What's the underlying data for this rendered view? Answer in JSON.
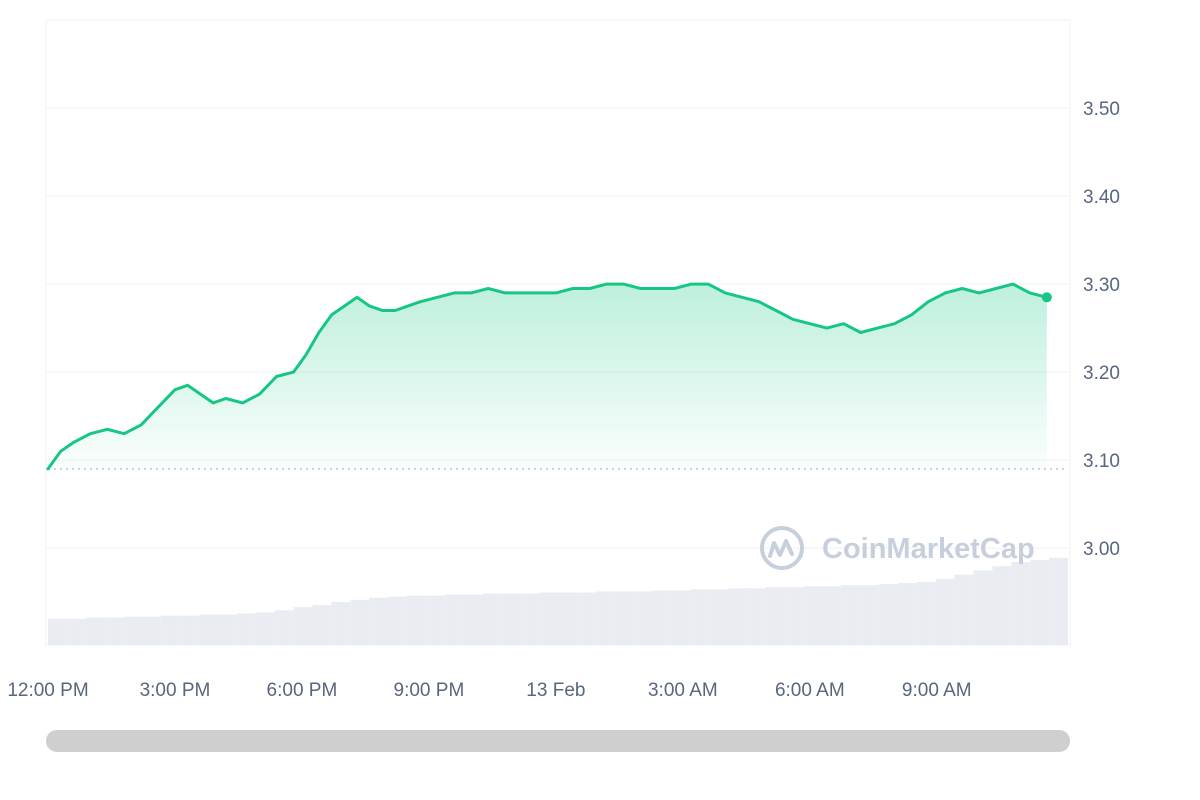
{
  "chart_data": {
    "type": "line",
    "title": "",
    "xlabel": "",
    "ylabel": "",
    "x_ticks": [
      "12:00 PM",
      "3:00 PM",
      "6:00 PM",
      "9:00 PM",
      "13 Feb",
      "3:00 AM",
      "6:00 AM",
      "9:00 AM"
    ],
    "y_ticks": [
      "3.00",
      "3.10",
      "3.20",
      "3.30",
      "3.40",
      "3.50"
    ],
    "ylim": [
      2.89,
      3.6
    ],
    "x_unit": "hours since 12:00 PM (12 Feb)",
    "xlim": [
      0,
      24.1
    ],
    "baseline": 3.09,
    "grid": true,
    "series": [
      {
        "values": [
          [
            0.0,
            3.09
          ],
          [
            0.3,
            3.11
          ],
          [
            0.6,
            3.12
          ],
          [
            1.0,
            3.13
          ],
          [
            1.4,
            3.135
          ],
          [
            1.8,
            3.13
          ],
          [
            2.2,
            3.14
          ],
          [
            2.6,
            3.16
          ],
          [
            3.0,
            3.18
          ],
          [
            3.3,
            3.185
          ],
          [
            3.6,
            3.175
          ],
          [
            3.9,
            3.165
          ],
          [
            4.2,
            3.17
          ],
          [
            4.6,
            3.165
          ],
          [
            5.0,
            3.175
          ],
          [
            5.4,
            3.195
          ],
          [
            5.8,
            3.2
          ],
          [
            6.1,
            3.22
          ],
          [
            6.4,
            3.245
          ],
          [
            6.7,
            3.265
          ],
          [
            7.0,
            3.275
          ],
          [
            7.3,
            3.285
          ],
          [
            7.6,
            3.275
          ],
          [
            7.9,
            3.27
          ],
          [
            8.2,
            3.27
          ],
          [
            8.5,
            3.275
          ],
          [
            8.8,
            3.28
          ],
          [
            9.2,
            3.285
          ],
          [
            9.6,
            3.29
          ],
          [
            10.0,
            3.29
          ],
          [
            10.4,
            3.295
          ],
          [
            10.8,
            3.29
          ],
          [
            11.2,
            3.29
          ],
          [
            11.6,
            3.29
          ],
          [
            12.0,
            3.29
          ],
          [
            12.4,
            3.295
          ],
          [
            12.8,
            3.295
          ],
          [
            13.2,
            3.3
          ],
          [
            13.6,
            3.3
          ],
          [
            14.0,
            3.295
          ],
          [
            14.4,
            3.295
          ],
          [
            14.8,
            3.295
          ],
          [
            15.2,
            3.3
          ],
          [
            15.6,
            3.3
          ],
          [
            16.0,
            3.29
          ],
          [
            16.4,
            3.285
          ],
          [
            16.8,
            3.28
          ],
          [
            17.2,
            3.27
          ],
          [
            17.6,
            3.26
          ],
          [
            18.0,
            3.255
          ],
          [
            18.4,
            3.25
          ],
          [
            18.8,
            3.255
          ],
          [
            19.2,
            3.245
          ],
          [
            19.6,
            3.25
          ],
          [
            20.0,
            3.255
          ],
          [
            20.4,
            3.265
          ],
          [
            20.8,
            3.28
          ],
          [
            21.2,
            3.29
          ],
          [
            21.6,
            3.295
          ],
          [
            22.0,
            3.29
          ],
          [
            22.4,
            3.295
          ],
          [
            22.8,
            3.3
          ],
          [
            23.2,
            3.29
          ],
          [
            23.6,
            3.285
          ]
        ]
      }
    ],
    "volume_bars": [
      0.25,
      0.25,
      0.26,
      0.26,
      0.27,
      0.27,
      0.28,
      0.28,
      0.29,
      0.29,
      0.3,
      0.31,
      0.33,
      0.36,
      0.38,
      0.41,
      0.43,
      0.45,
      0.46,
      0.47,
      0.47,
      0.48,
      0.48,
      0.49,
      0.49,
      0.49,
      0.5,
      0.5,
      0.5,
      0.51,
      0.51,
      0.51,
      0.52,
      0.52,
      0.53,
      0.53,
      0.54,
      0.54,
      0.55,
      0.55,
      0.56,
      0.56,
      0.57,
      0.57,
      0.58,
      0.59,
      0.6,
      0.63,
      0.67,
      0.71,
      0.75,
      0.79,
      0.81,
      0.83
    ]
  },
  "watermark": {
    "text": "CoinMarketCap"
  },
  "colors": {
    "line": "#16c784",
    "area_top": "#16c784",
    "grid": "#eff2f5",
    "baseline": "#a6b0c3",
    "volume": "#e9ecf1",
    "scrollbar": "#cfcfcf",
    "tick_text": "#58667e",
    "watermark": "#c7cfdc"
  },
  "scrollbar": {
    "position": 0,
    "visible_fraction": 1
  }
}
